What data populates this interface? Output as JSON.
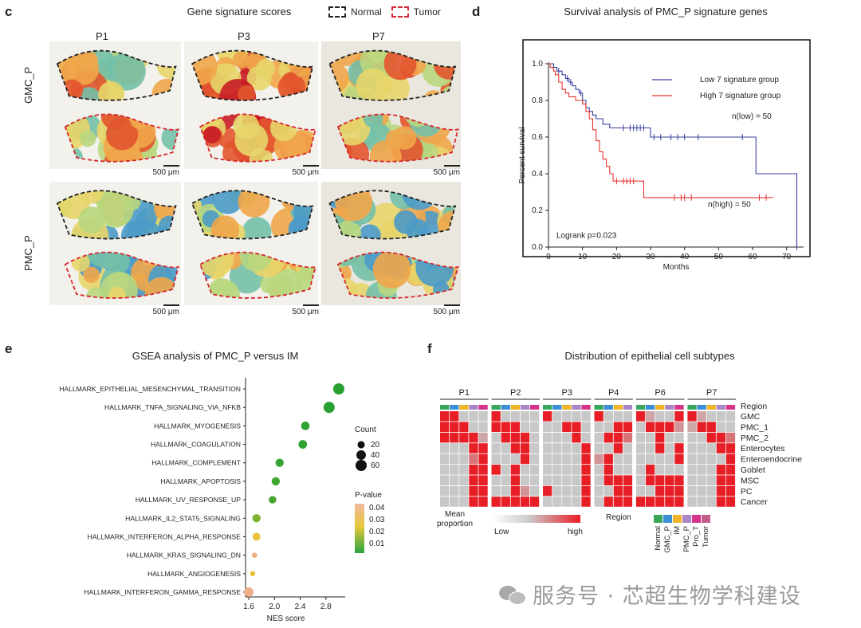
{
  "panel_c": {
    "label": "c",
    "title": "Gene signature scores",
    "legend": [
      {
        "label": "Normal",
        "color": "#222222"
      },
      {
        "label": "Tumor",
        "color": "#d6262b"
      }
    ],
    "columns": [
      "P1",
      "P3",
      "P7"
    ],
    "rows": [
      "GMC_P",
      "PMC_P"
    ],
    "scale_label": "500 μm"
  },
  "panel_d": {
    "label": "d",
    "title": "Survival analysis of PMC_P signature genes",
    "chart_data": {
      "type": "line",
      "title": "Survival analysis of PMC_P signature genes",
      "xlabel": "Months",
      "ylabel": "Percent survival",
      "xlim": [
        0,
        75
      ],
      "ylim": [
        0,
        1.0
      ],
      "xticks": [
        0,
        10,
        20,
        30,
        40,
        50,
        60,
        70
      ],
      "yticks": [
        "0.0",
        "0.2",
        "0.4",
        "0.6",
        "0.8",
        "1.0"
      ],
      "legend": "top-right",
      "series": [
        {
          "name": "Low 7 signature group",
          "color": "#3a3fa0",
          "x": [
            0,
            1,
            1.5,
            2.5,
            4,
            5,
            6,
            7,
            8,
            9,
            10,
            11,
            12,
            13,
            14,
            16,
            18,
            30,
            61,
            73,
            73
          ],
          "y": [
            1.0,
            1.0,
            0.98,
            0.96,
            0.94,
            0.92,
            0.9,
            0.88,
            0.86,
            0.84,
            0.8,
            0.76,
            0.74,
            0.72,
            0.7,
            0.67,
            0.65,
            0.6,
            0.4,
            0.4,
            0.0
          ],
          "censor_x": [
            3,
            5.5,
            6.5,
            9.5,
            22,
            24,
            25,
            26,
            27,
            28,
            31,
            33,
            36,
            38,
            40,
            44,
            57,
            73
          ],
          "n_label": "n(low) = 50"
        },
        {
          "name": "High 7 signature group",
          "color": "#e8322e",
          "x": [
            0,
            0.5,
            1.5,
            2,
            3,
            4,
            5,
            6,
            8,
            10,
            11,
            12,
            13,
            14,
            15,
            16,
            17,
            18,
            19,
            28,
            66
          ],
          "y": [
            1.0,
            0.98,
            0.96,
            0.94,
            0.9,
            0.86,
            0.84,
            0.82,
            0.8,
            0.78,
            0.74,
            0.7,
            0.64,
            0.58,
            0.52,
            0.48,
            0.44,
            0.4,
            0.36,
            0.27,
            0.27
          ],
          "censor_x": [
            20,
            22,
            23,
            24,
            25,
            37,
            39,
            40,
            42,
            62,
            64
          ],
          "n_label": "n(high) = 50"
        }
      ],
      "annotation": "Logrank p=0.023"
    }
  },
  "panel_e": {
    "label": "e",
    "title": "GSEA analysis of PMC_P versus IM",
    "chart_data": {
      "type": "scatter",
      "title": "GSEA analysis of PMC_P versus IM",
      "xlabel": "NES score",
      "xlim": [
        1.55,
        3.1
      ],
      "xticks": [
        "1.6",
        "2.0",
        "2.4",
        "2.8"
      ],
      "categories": [
        "HALLMARK_EPITHELIAL_MESENCHYMAL_TRANSITION",
        "HALLMARK_TNFA_SIGNALING_VIA_NFKB",
        "HALLMARK_MYOGENESIS",
        "HALLMARK_COAGULATION",
        "HALLMARK_COMPLEMENT",
        "HALLMARK_APOPTOSIS",
        "HALLMARK_UV_RESPONSE_UP",
        "HALLMARK_IL2_STAT5_SIGNALING",
        "HALLMARK_INTERFERON_ALPHA_RESPONSE",
        "HALLMARK_KRAS_SIGNALING_DN",
        "HALLMARK_ANGIOGENESIS",
        "HALLMARK_INTERFERON_GAMMA_RESPONSE"
      ],
      "nes": [
        3.0,
        2.85,
        2.48,
        2.44,
        2.08,
        2.02,
        1.97,
        1.72,
        1.72,
        1.69,
        1.66,
        1.6
      ],
      "count": [
        60,
        60,
        30,
        32,
        28,
        28,
        22,
        28,
        25,
        8,
        8,
        40
      ],
      "pvalue": [
        0.001,
        0.001,
        0.002,
        0.002,
        0.003,
        0.004,
        0.005,
        0.012,
        0.03,
        0.043,
        0.03,
        0.045
      ],
      "size_legend": {
        "title": "Count",
        "values": [
          "20",
          "40",
          "60"
        ]
      },
      "color_legend": {
        "title": "P-value",
        "values": [
          "0.04",
          "0.03",
          "0.02",
          "0.01"
        ]
      }
    }
  },
  "panel_f": {
    "label": "f",
    "title": "Distribution of epithelial cell subtypes",
    "chart_data": {
      "type": "heatmap",
      "title": "Distribution of epithelial cell subtypes",
      "groups": [
        "P1",
        "P2",
        "P3",
        "P4",
        "P6",
        "P7"
      ],
      "region_row": "Region",
      "rows": [
        "GMC",
        "PMC_1",
        "PMC_2",
        "Enterocytes",
        "Enteroendocrine",
        "Goblet",
        "MSC",
        "PC",
        "Cancer"
      ],
      "region_colors": [
        "#3aa65b",
        "#3b8fd6",
        "#f0b429",
        "#a886c8",
        "#d6338a",
        "#c45c8a"
      ],
      "values": [
        [
          1,
          1,
          0,
          0,
          0,
          1,
          0,
          0,
          0,
          0,
          1,
          0,
          0,
          0,
          0,
          1,
          0,
          0,
          0,
          1,
          0.2,
          0,
          0,
          1,
          1,
          0.2,
          0,
          0,
          0
        ],
        [
          1,
          1,
          1,
          0,
          0,
          1,
          1,
          1,
          0,
          0,
          0,
          0,
          1,
          1,
          0,
          0,
          0,
          1,
          1,
          0,
          1,
          1,
          1,
          0.3,
          0.2,
          1,
          1,
          0,
          0
        ],
        [
          1,
          1,
          1,
          1,
          0.2,
          0,
          1,
          1,
          1,
          0,
          0,
          0,
          0,
          1,
          0,
          0,
          1,
          1,
          0.5,
          0,
          0,
          1,
          0,
          0,
          0,
          0,
          1,
          1,
          0.5
        ],
        [
          0,
          0,
          0,
          1,
          1,
          0,
          0,
          1,
          1,
          0,
          0,
          0,
          0,
          0,
          1,
          0,
          0,
          1,
          0,
          0,
          0,
          1,
          0,
          1,
          0,
          0,
          0,
          1,
          1
        ],
        [
          0,
          0,
          0,
          0.5,
          1,
          0,
          0,
          0,
          1,
          0,
          0,
          0,
          0,
          0,
          1,
          0.3,
          1,
          0,
          0,
          0,
          0,
          0,
          0,
          1,
          0,
          0,
          0,
          0,
          1
        ],
        [
          0,
          0,
          0,
          1,
          1,
          1,
          0,
          1,
          0,
          0,
          0,
          0,
          0,
          0,
          1,
          0,
          1,
          0,
          0,
          0,
          1,
          0,
          0,
          0,
          0,
          0,
          0,
          1,
          1
        ],
        [
          0,
          0,
          0,
          1,
          1,
          0,
          0,
          1,
          0,
          0,
          0,
          0,
          0,
          0,
          1,
          0,
          1,
          1,
          1,
          0,
          1,
          1,
          1,
          1,
          0,
          0,
          0,
          1,
          1
        ],
        [
          0,
          0,
          0,
          1,
          1,
          0,
          0,
          1,
          0.3,
          0,
          1,
          0,
          0,
          0,
          1,
          0,
          0,
          1,
          1,
          0,
          0,
          1,
          1,
          1,
          0,
          0,
          0,
          1,
          1
        ],
        [
          0,
          0,
          0,
          1,
          1,
          1,
          1,
          1,
          1,
          1,
          0,
          0,
          0,
          0,
          1,
          0,
          1,
          1,
          1,
          1,
          1,
          1,
          1,
          1,
          0,
          0,
          0,
          1,
          1
        ]
      ],
      "group_cols": [
        5,
        5,
        5,
        4,
        5,
        5
      ],
      "mean_legend": {
        "title": "Mean proportion",
        "low": "Low",
        "high": "high"
      },
      "region_legend": {
        "title": "Region",
        "items": [
          "Normal",
          "GMC_P",
          "IM",
          "PMC_P",
          "Pro_T",
          "Tumor"
        ]
      }
    }
  },
  "watermark": "服务号 · 芯超生物学科建设"
}
